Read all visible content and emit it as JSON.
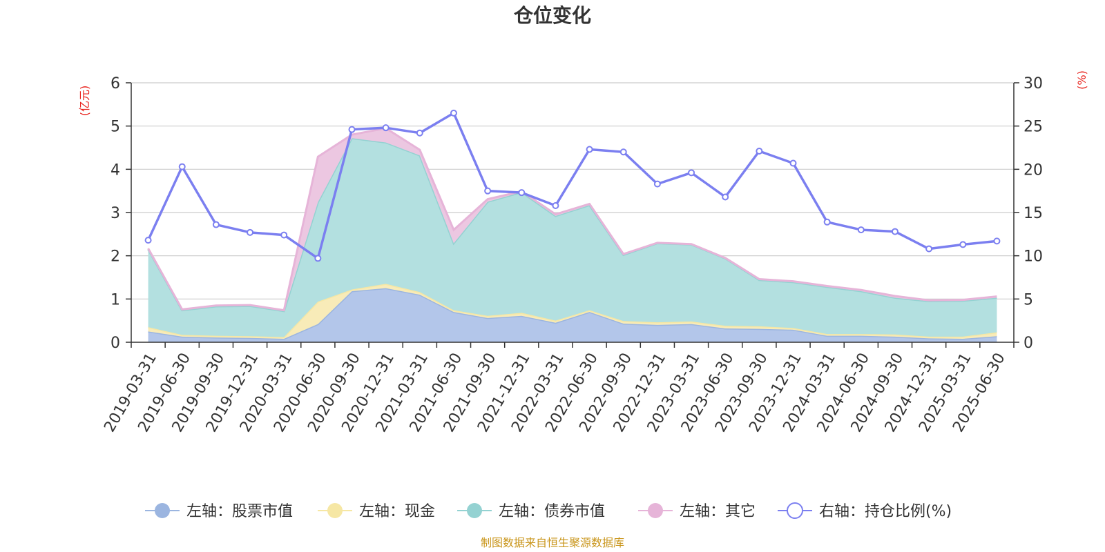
{
  "chart_data": {
    "type": "area",
    "title": "仓位变化",
    "left_unit": "(亿元)",
    "right_unit": "(%)",
    "source": "制图数据来自恒生聚源数据库",
    "x": [
      "2019-03-31",
      "2019-06-30",
      "2019-09-30",
      "2019-12-31",
      "2020-03-31",
      "2020-06-30",
      "2020-09-30",
      "2020-12-31",
      "2021-03-31",
      "2021-06-30",
      "2021-09-30",
      "2021-12-31",
      "2022-03-31",
      "2022-06-30",
      "2022-09-30",
      "2022-12-31",
      "2023-03-31",
      "2023-06-30",
      "2023-09-30",
      "2023-12-31",
      "2024-03-31",
      "2024-06-30",
      "2024-09-30",
      "2024-12-31",
      "2025-03-31",
      "2025-06-30"
    ],
    "left_axis": {
      "min": 0,
      "max": 6,
      "ticks": [
        0,
        1,
        2,
        3,
        4,
        5,
        6
      ]
    },
    "right_axis": {
      "min": 0,
      "max": 30,
      "ticks": [
        0,
        5,
        10,
        15,
        20,
        25,
        30
      ]
    },
    "grid": true,
    "legend_position": "bottom",
    "stacked_series": [
      {
        "name": "左轴：股票市值",
        "color": "#9bb5e0",
        "fill": "#b3c6ea",
        "values": [
          0.25,
          0.13,
          0.11,
          0.1,
          0.08,
          0.42,
          1.18,
          1.25,
          1.1,
          0.7,
          0.56,
          0.61,
          0.45,
          0.7,
          0.43,
          0.4,
          0.42,
          0.32,
          0.31,
          0.29,
          0.15,
          0.15,
          0.13,
          0.09,
          0.08,
          0.14
        ]
      },
      {
        "name": "左轴：现金",
        "color": "#f6e7a4",
        "fill": "#f8ebb8",
        "values": [
          0.1,
          0.04,
          0.04,
          0.04,
          0.04,
          0.52,
          0.04,
          0.1,
          0.06,
          0.04,
          0.05,
          0.07,
          0.05,
          0.04,
          0.06,
          0.06,
          0.06,
          0.06,
          0.06,
          0.04,
          0.04,
          0.04,
          0.05,
          0.04,
          0.05,
          0.09
        ]
      },
      {
        "name": "左轴：债券市值",
        "color": "#94d2d2",
        "fill": "#b3e0e0",
        "values": [
          1.8,
          0.57,
          0.68,
          0.7,
          0.6,
          2.3,
          3.5,
          3.27,
          3.16,
          1.55,
          2.64,
          2.79,
          2.42,
          2.43,
          1.53,
          1.83,
          1.78,
          1.56,
          1.07,
          1.06,
          1.09,
          0.99,
          0.85,
          0.82,
          0.83,
          0.8
        ]
      },
      {
        "name": "左轴：其它",
        "color": "#e6b4d8",
        "fill": "#ecc7e1",
        "values": [
          0.02,
          0.02,
          0.02,
          0.02,
          0.02,
          1.05,
          0.08,
          0.33,
          0.13,
          0.31,
          0.06,
          0.02,
          0.04,
          0.03,
          0.02,
          0.01,
          0.01,
          0.01,
          0.02,
          0.02,
          0.02,
          0.03,
          0.04,
          0.02,
          0.02,
          0.03
        ]
      }
    ],
    "line_series": {
      "name": "右轴：持仓比例(%)",
      "color": "#7b7ff0",
      "values": [
        11.8,
        20.3,
        13.6,
        12.7,
        12.4,
        9.7,
        24.6,
        24.8,
        24.2,
        26.5,
        17.5,
        17.3,
        15.8,
        22.3,
        22.0,
        18.3,
        19.6,
        16.8,
        22.1,
        20.7,
        13.9,
        13.0,
        12.8,
        10.8,
        11.3,
        11.7
      ]
    }
  }
}
